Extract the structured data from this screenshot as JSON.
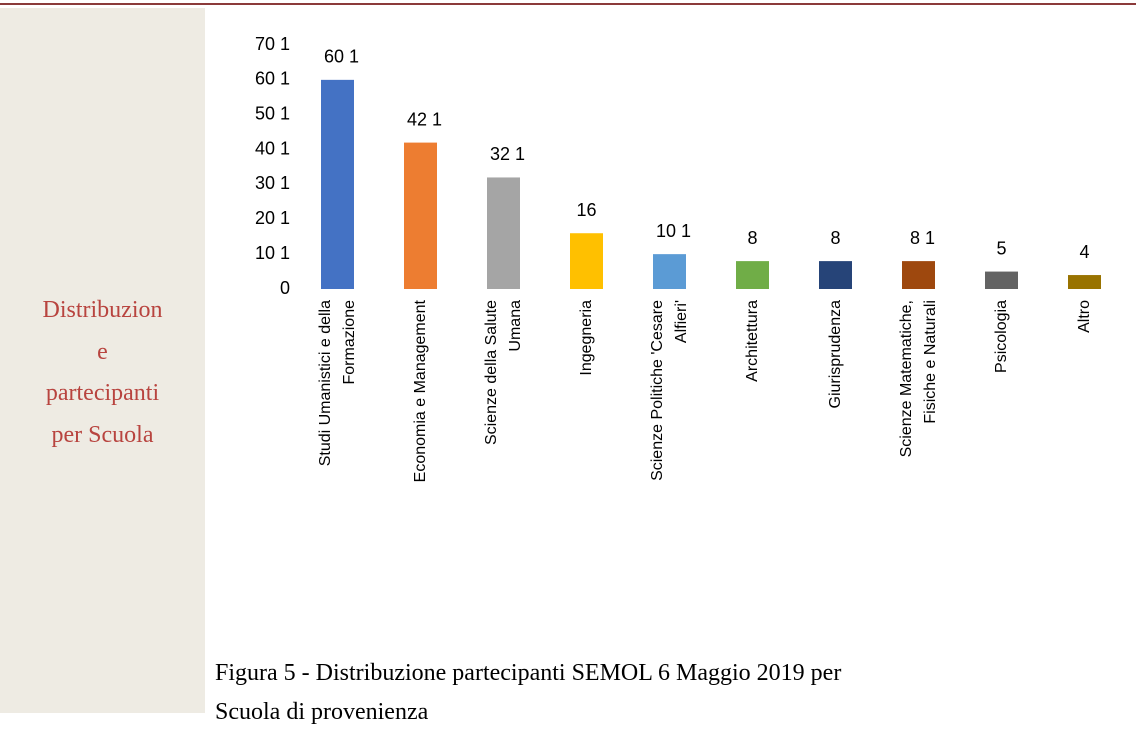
{
  "sidebar": {
    "lines": [
      "Distribuzion",
      "e",
      "partecipanti",
      "per Scuola"
    ]
  },
  "chart_data": {
    "type": "bar",
    "categories": [
      "Studi Umanistici e della\nFormazione",
      "Economia e Management",
      "Scienze della Salute\nUmana",
      "Ingegneria",
      "Scienze Politiche 'Cesare\nAlfieri'",
      "Architettura",
      "Giurisprudenza",
      "Scienze Matematiche,\nFisiche e Naturali",
      "Psicologia",
      "Altro"
    ],
    "values": [
      60,
      42,
      32,
      16,
      10,
      8,
      8,
      8,
      5,
      4
    ],
    "value_labels": [
      "60 1",
      "42 1",
      "32 1",
      "16",
      "10 1",
      "8",
      "8",
      "8 1",
      "5",
      "4"
    ],
    "colors": [
      "#4472c4",
      "#ed7d31",
      "#a5a5a5",
      "#ffc000",
      "#5b9bd5",
      "#70ad47",
      "#264478",
      "#9e480e",
      "#636363",
      "#997300"
    ],
    "ylim": [
      0,
      70
    ],
    "yticks": [
      0,
      {
        "value": 10,
        "label": "10 1"
      },
      {
        "value": 20,
        "label": "20 1"
      },
      {
        "value": 30,
        "label": "30 1"
      },
      {
        "value": 40,
        "label": "40 1"
      },
      {
        "value": 50,
        "label": "50 1"
      },
      {
        "value": 60,
        "label": "60 1"
      },
      {
        "value": 70,
        "label": "70 1"
      }
    ],
    "grid": false
  },
  "caption": {
    "lines": [
      "Figura 5 - Distribuzione partecipanti SEMOL 6 Maggio 2019 per",
      "Scuola di provenienza"
    ]
  }
}
